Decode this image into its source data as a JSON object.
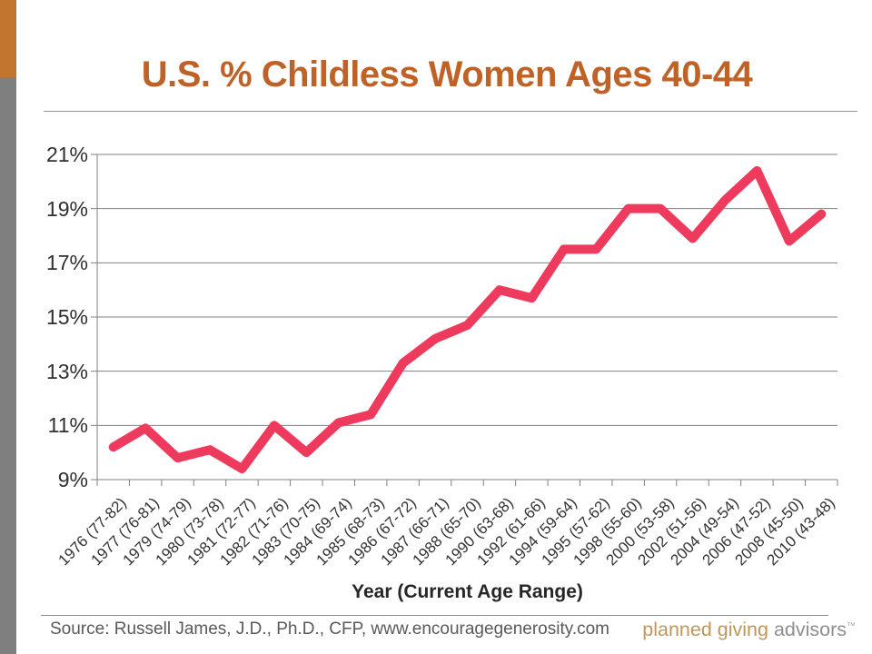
{
  "page": {
    "title": "U.S. % Childless Women Ages 40-44"
  },
  "chart_data": {
    "type": "line",
    "title": "U.S. % Childless Women Ages 40-44",
    "series_name": "U.S. % childless women ages 40-44",
    "xlabel": "Year (Current Age Range)",
    "ylabel": "",
    "ylim": [
      9,
      21
    ],
    "y_tick_labels": [
      "21%",
      "19%",
      "17%",
      "15%",
      "13%",
      "11%",
      "9%"
    ],
    "y_tick_values": [
      21,
      19,
      17,
      15,
      13,
      11,
      9
    ],
    "grid": true,
    "legend": false,
    "categories": [
      "1976 (77-82)",
      "1977 (76-81)",
      "1979 (74-79)",
      "1980 (73-78)",
      "1981 (72-77)",
      "1982 (71-76)",
      "1983 (70-75)",
      "1984 (69-74)",
      "1985 (68-73)",
      "1986 (67-72)",
      "1987 (66-71)",
      "1988 (65-70)",
      "1990 (63-68)",
      "1992 (61-66)",
      "1994 (59-64)",
      "1995 (57-62)",
      "1998 (55-60)",
      "2000 (53-58)",
      "2002 (51-56)",
      "2004 (49-54)",
      "2006 (47-52)",
      "2008 (45-50)",
      "2010 (43-48)"
    ],
    "values": [
      10.2,
      10.9,
      9.8,
      10.1,
      9.4,
      11.0,
      10.0,
      11.1,
      11.4,
      13.3,
      14.2,
      14.7,
      16.0,
      15.7,
      17.5,
      17.5,
      19.0,
      19.0,
      17.9,
      19.3,
      20.4,
      17.8,
      18.8
    ],
    "line_color": "#EE3A5C",
    "grid_color": "#808080"
  },
  "footer": {
    "source": "Source: Russell James, J.D., Ph.D., CFP, www.encouragegenerosity.com",
    "logo": {
      "part1": "planned giving",
      "part2": "advisors",
      "mark": "™"
    }
  },
  "colors": {
    "title_orange": "#BE6227",
    "accent_bar_orange": "#C2752F",
    "accent_bar_gray": "#7F7F7F",
    "line_pink": "#EE3A5C",
    "logo_tan": "#C09659",
    "logo_gray": "#8F8F8F"
  }
}
